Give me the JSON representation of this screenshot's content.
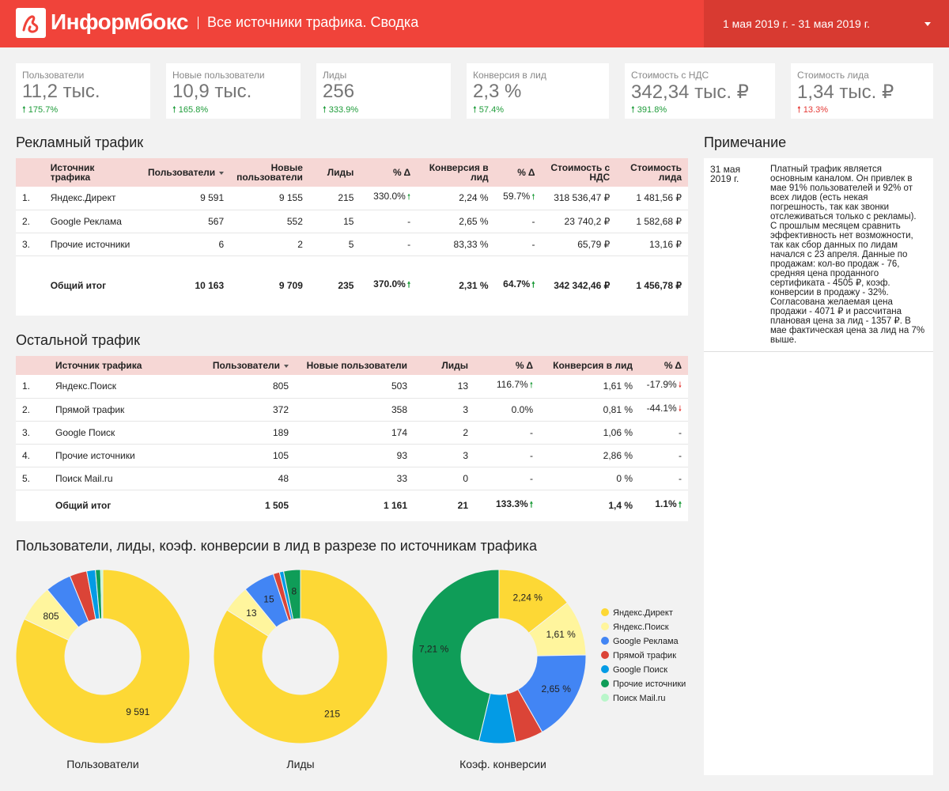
{
  "header": {
    "logo_text": "Информбокс",
    "title": "Все источники трафика. Сводка",
    "date_range": "1 мая 2019 г. - 31 мая 2019 г.",
    "bg_color": "#f0433a"
  },
  "kpis": [
    {
      "label": "Пользователи",
      "value": "11,2 тыс.",
      "delta": "175.7%",
      "direction": "up"
    },
    {
      "label": "Новые пользователи",
      "value": "10,9 тыс.",
      "delta": "165.8%",
      "direction": "up"
    },
    {
      "label": "Лиды",
      "value": "256",
      "delta": "333.9%",
      "direction": "up"
    },
    {
      "label": "Конверсия в лид",
      "value": "2,3 %",
      "delta": "57.4%",
      "direction": "up"
    },
    {
      "label": "Стоимость с НДС",
      "value": "342,34 тыс. ₽",
      "delta": "391.8%",
      "direction": "up"
    },
    {
      "label": "Стоимость лида",
      "value": "1,34 тыс. ₽",
      "delta": "13.3%",
      "direction": "up-red"
    }
  ],
  "paid": {
    "title": "Рекламный трафик",
    "headers": [
      "Источник трафика",
      "Пользователи",
      "Новые пользователи",
      "Лиды",
      "% Δ",
      "Конверсия в лид",
      "% Δ",
      "Стоимость с НДС",
      "Стоимость лида"
    ],
    "rows": [
      {
        "n": "1.",
        "source": "Яндекс.Директ",
        "users": "9 591",
        "new_users": "9 155",
        "leads": "215",
        "d1": "330.0%",
        "d1_dir": "up",
        "conv": "2,24 %",
        "d2": "59.7%",
        "d2_dir": "up",
        "cost": "318 536,47 ₽",
        "lead_cost": "1 481,56 ₽"
      },
      {
        "n": "2.",
        "source": "Google Реклама",
        "users": "567",
        "new_users": "552",
        "leads": "15",
        "d1": "-",
        "d1_dir": "",
        "conv": "2,65 %",
        "d2": "-",
        "d2_dir": "",
        "cost": "23 740,2 ₽",
        "lead_cost": "1 582,68 ₽"
      },
      {
        "n": "3.",
        "source": "Прочие источники",
        "users": "6",
        "new_users": "2",
        "leads": "5",
        "d1": "-",
        "d1_dir": "",
        "conv": "83,33 %",
        "d2": "-",
        "d2_dir": "",
        "cost": "65,79 ₽",
        "lead_cost": "13,16 ₽"
      }
    ],
    "total": {
      "label": "Общий итог",
      "users": "10 163",
      "new_users": "9 709",
      "leads": "235",
      "d1": "370.0%",
      "d1_dir": "up",
      "conv": "2,31 %",
      "d2": "64.7%",
      "d2_dir": "up",
      "cost": "342 342,46 ₽",
      "lead_cost": "1 456,78 ₽"
    }
  },
  "other": {
    "title": "Остальной трафик",
    "headers": [
      "Источник трафика",
      "Пользователи",
      "Новые пользователи",
      "Лиды",
      "% Δ",
      "Конверсия в лид",
      "% Δ"
    ],
    "rows": [
      {
        "n": "1.",
        "source": "Яндекс.Поиск",
        "users": "805",
        "new_users": "503",
        "leads": "13",
        "d1": "116.7%",
        "d1_dir": "up",
        "conv": "1,61 %",
        "d2": "-17.9%",
        "d2_dir": "down"
      },
      {
        "n": "2.",
        "source": "Прямой трафик",
        "users": "372",
        "new_users": "358",
        "leads": "3",
        "d1": "0.0%",
        "d1_dir": "",
        "conv": "0,81 %",
        "d2": "-44.1%",
        "d2_dir": "down"
      },
      {
        "n": "3.",
        "source": "Google Поиск",
        "users": "189",
        "new_users": "174",
        "leads": "2",
        "d1": "-",
        "d1_dir": "",
        "conv": "1,06 %",
        "d2": "-",
        "d2_dir": ""
      },
      {
        "n": "4.",
        "source": "Прочие источники",
        "users": "105",
        "new_users": "93",
        "leads": "3",
        "d1": "-",
        "d1_dir": "",
        "conv": "2,86 %",
        "d2": "-",
        "d2_dir": ""
      },
      {
        "n": "5.",
        "source": "Поиск Mail.ru",
        "users": "48",
        "new_users": "33",
        "leads": "0",
        "d1": "-",
        "d1_dir": "",
        "conv": "0 %",
        "d2": "-",
        "d2_dir": ""
      }
    ],
    "total": {
      "label": "Общий итог",
      "users": "1 505",
      "new_users": "1 161",
      "leads": "21",
      "d1": "133.3%",
      "d1_dir": "up",
      "conv": "1,4 %",
      "d2": "1.1%",
      "d2_dir": "up"
    }
  },
  "note": {
    "title": "Примечание",
    "date": "31 мая 2019 г.",
    "text": "Платный трафик является основным каналом. Он привлек в мае 91% пользователей и 92% от всех лидов (есть некая погрешность, так как звонки отслеживаться только с рекламы). С прошлым месяцем сравнить эффективность нет возможности, так как сбор данных по лидам начался с 23 апреля. Данные по продажам: кол-во продаж - 76, средняя цена проданного сертификата - 4505 ₽, коэф. конверсии в продажу - 32%. Согласована желаемая цена продажи - 4071 ₽ и рассчитана плановая цена за лид - 1357 ₽. В мае фактическая цена за лид на 7% выше."
  },
  "charts_title": "Пользователи, лиды, коэф. конверсии в лид в разрезе по источникам трафика",
  "chart_data": [
    {
      "type": "pie",
      "title": "Пользователи",
      "categories": [
        "Яндекс.Директ",
        "Яндекс.Поиск",
        "Google Реклама",
        "Прямой трафик",
        "Google Поиск",
        "Прочие источники",
        "Поиск Mail.ru"
      ],
      "values": [
        9591,
        805,
        567,
        372,
        189,
        111,
        48
      ],
      "data_labels": [
        "9 591",
        "805",
        "",
        "",
        "",
        "",
        ""
      ]
    },
    {
      "type": "pie",
      "title": "Лиды",
      "categories": [
        "Яндекс.Директ",
        "Яндекс.Поиск",
        "Google Реклама",
        "Прямой трафик",
        "Google Поиск",
        "Прочие источники",
        "Поиск Mail.ru"
      ],
      "values": [
        215,
        13,
        15,
        3,
        2,
        8,
        0
      ],
      "data_labels": [
        "215",
        "13",
        "15",
        "",
        "",
        "8",
        ""
      ]
    },
    {
      "type": "pie",
      "title": "Коэф. конверсии",
      "categories": [
        "Яндекс.Директ",
        "Яндекс.Поиск",
        "Google Реклама",
        "Прямой трафик",
        "Google Поиск",
        "Прочие источники",
        "Поиск Mail.ru"
      ],
      "values": [
        2.24,
        1.61,
        2.65,
        0.81,
        1.06,
        7.21,
        0
      ],
      "data_labels": [
        "2,24 %",
        "1,61 %",
        "2,65 %",
        "",
        "",
        "7,21 %",
        ""
      ]
    }
  ],
  "legend": [
    {
      "label": "Яндекс.Директ",
      "color": "#fdd835"
    },
    {
      "label": "Яндекс.Поиск",
      "color": "#fff59d"
    },
    {
      "label": "Google Реклама",
      "color": "#4285f4"
    },
    {
      "label": "Прямой трафик",
      "color": "#db4437"
    },
    {
      "label": "Google Поиск",
      "color": "#039be5"
    },
    {
      "label": "Прочие источники",
      "color": "#0f9d58"
    },
    {
      "label": "Поиск Mail.ru",
      "color": "#b9f6ca"
    }
  ]
}
